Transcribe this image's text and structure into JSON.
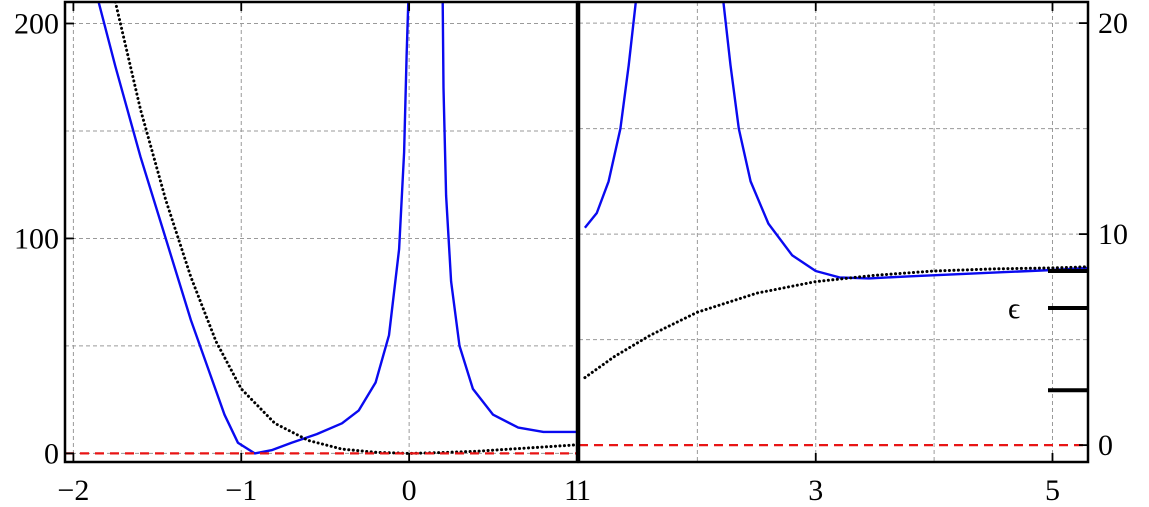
{
  "chart_data": [
    {
      "type": "line",
      "panel": "left",
      "xlim": [
        -2.05,
        1.0
      ],
      "ylim": [
        -4,
        210
      ],
      "xticks": [
        {
          "value": -2,
          "label": "−2"
        },
        {
          "value": -1,
          "label": "−1"
        },
        {
          "value": 0,
          "label": "0"
        },
        {
          "value": 1,
          "label": "1"
        }
      ],
      "yticks": [
        {
          "value": 0,
          "label": "0"
        },
        {
          "value": 100,
          "label": "100"
        },
        {
          "value": 200,
          "label": "200"
        }
      ],
      "grid_x": [
        -2,
        -1,
        0,
        1
      ],
      "grid_y": [
        0,
        50,
        100,
        150,
        200
      ],
      "series": [
        {
          "style": "solid",
          "color": "#0a0af0",
          "segments": [
            [
              [
                -1.85,
                210
              ],
              [
                -1.75,
                180
              ],
              [
                -1.6,
                138
              ],
              [
                -1.45,
                100
              ],
              [
                -1.3,
                62
              ],
              [
                -1.2,
                40
              ],
              [
                -1.1,
                18
              ],
              [
                -1.02,
                5
              ],
              [
                -0.92,
                0
              ],
              [
                -0.82,
                1.5
              ],
              [
                -0.7,
                5
              ],
              [
                -0.55,
                9
              ],
              [
                -0.4,
                14
              ],
              [
                -0.3,
                20
              ],
              [
                -0.2,
                33
              ],
              [
                -0.12,
                55
              ],
              [
                -0.06,
                95
              ],
              [
                -0.03,
                140
              ],
              [
                -0.015,
                185
              ],
              [
                -0.005,
                210
              ]
            ],
            [
              [
                0.2,
                210
              ],
              [
                0.205,
                170
              ],
              [
                0.22,
                120
              ],
              [
                0.25,
                80
              ],
              [
                0.3,
                50
              ],
              [
                0.38,
                30
              ],
              [
                0.5,
                18
              ],
              [
                0.65,
                12
              ],
              [
                0.8,
                10
              ],
              [
                1.0,
                10
              ]
            ]
          ]
        },
        {
          "style": "dotted",
          "color": "#000000",
          "segments": [
            [
              [
                -1.75,
                210
              ],
              [
                -1.6,
                160
              ],
              [
                -1.45,
                118
              ],
              [
                -1.3,
                82
              ],
              [
                -1.15,
                52
              ],
              [
                -1.0,
                30
              ],
              [
                -0.8,
                14
              ],
              [
                -0.6,
                6
              ],
              [
                -0.4,
                2
              ],
              [
                -0.2,
                0.5
              ],
              [
                0.0,
                0
              ],
              [
                0.2,
                0.4
              ],
              [
                0.4,
                1
              ],
              [
                0.6,
                2
              ],
              [
                0.8,
                3
              ],
              [
                1.0,
                4
              ]
            ]
          ]
        },
        {
          "style": "dashed",
          "color": "#e81515",
          "segments": [
            [
              [
                -2.05,
                0
              ],
              [
                1.0,
                0
              ]
            ]
          ]
        }
      ]
    },
    {
      "type": "line",
      "panel": "right",
      "xlim": [
        1.0,
        5.3
      ],
      "ylim": [
        -0.8,
        21
      ],
      "xticks": [
        {
          "value": 1,
          "label": "1"
        },
        {
          "value": 3,
          "label": "3"
        },
        {
          "value": 5,
          "label": "5"
        }
      ],
      "yticks": [
        {
          "value": 0,
          "label": "0"
        },
        {
          "value": 10,
          "label": "10"
        },
        {
          "value": 20,
          "label": "20"
        }
      ],
      "grid_x": [
        2,
        3,
        4,
        5
      ],
      "grid_y": [
        5,
        10,
        15,
        20
      ],
      "annotation": "ϵ",
      "markers": [
        8.25,
        6.5,
        2.6
      ],
      "series": [
        {
          "style": "solid",
          "color": "#0a0af0",
          "segments": [
            [
              [
                1.05,
                10.3
              ],
              [
                1.15,
                11.0
              ],
              [
                1.25,
                12.5
              ],
              [
                1.35,
                15.0
              ],
              [
                1.42,
                18.0
              ],
              [
                1.48,
                21
              ]
            ],
            [
              [
                2.22,
                21
              ],
              [
                2.28,
                18.0
              ],
              [
                2.35,
                15.0
              ],
              [
                2.45,
                12.5
              ],
              [
                2.6,
                10.5
              ],
              [
                2.8,
                9.0
              ],
              [
                3.0,
                8.25
              ],
              [
                3.2,
                7.95
              ],
              [
                3.45,
                7.9
              ],
              [
                3.8,
                8.0
              ],
              [
                4.2,
                8.1
              ],
              [
                4.6,
                8.2
              ],
              [
                5.0,
                8.3
              ],
              [
                5.3,
                8.4
              ]
            ]
          ]
        },
        {
          "style": "dotted",
          "color": "#000000",
          "segments": [
            [
              [
                1.05,
                3.2
              ],
              [
                1.3,
                4.2
              ],
              [
                1.6,
                5.2
              ],
              [
                2.0,
                6.3
              ],
              [
                2.5,
                7.2
              ],
              [
                3.0,
                7.75
              ],
              [
                3.5,
                8.05
              ],
              [
                4.0,
                8.25
              ],
              [
                4.5,
                8.35
              ],
              [
                5.0,
                8.4
              ],
              [
                5.3,
                8.45
              ]
            ]
          ]
        },
        {
          "style": "dashed",
          "color": "#e81515",
          "segments": [
            [
              [
                1.0,
                0
              ],
              [
                5.3,
                0
              ]
            ]
          ]
        }
      ]
    }
  ]
}
